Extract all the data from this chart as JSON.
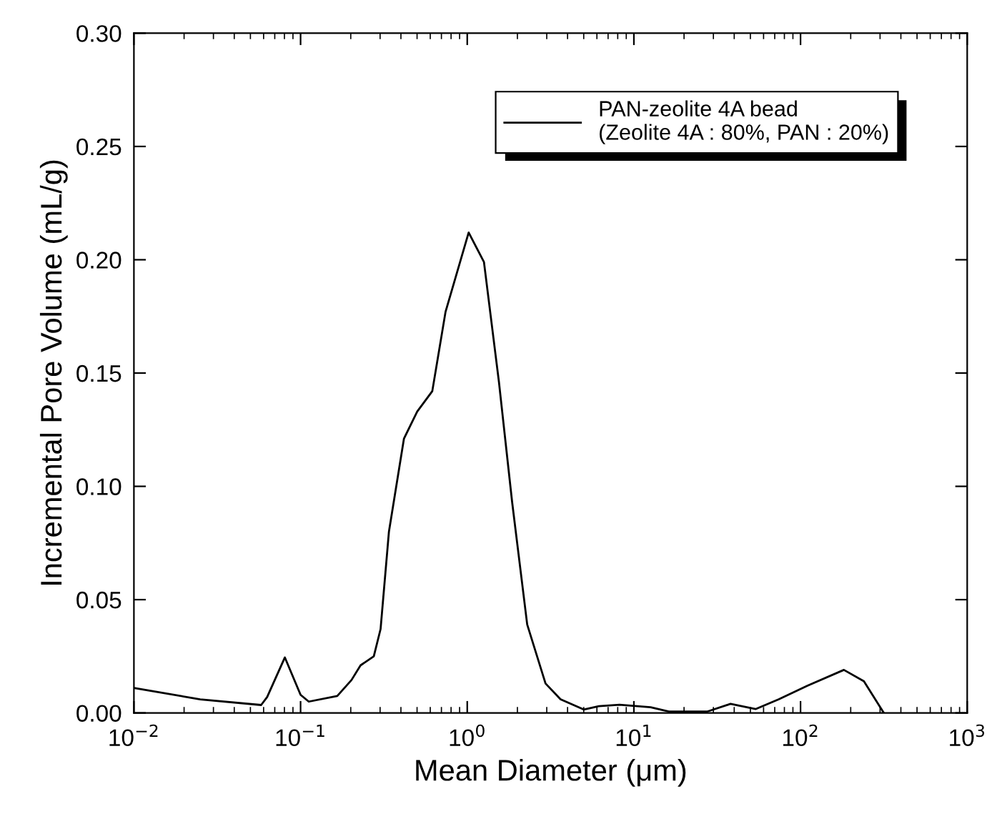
{
  "chart_data": {
    "type": "line",
    "xlabel": "Mean Diameter (μm)",
    "ylabel": "Incremental Pore Volume (mL/g)",
    "log": "x",
    "xlim": [
      0.01,
      1000
    ],
    "ylim": [
      0,
      0.3
    ],
    "xticks": [
      {
        "value": 0.01,
        "label": "10$^{−2}$"
      },
      {
        "value": 0.1,
        "label": "10$^{−1}$"
      },
      {
        "value": 1,
        "label": "10$^{0}$"
      },
      {
        "value": 10,
        "label": "10$^{1}$"
      },
      {
        "value": 100,
        "label": "10$^{2}$"
      },
      {
        "value": 1000,
        "label": "10$^{3}$"
      }
    ],
    "yticks": [
      {
        "value": 0,
        "label": "0.00"
      },
      {
        "value": 0.05,
        "label": "0.05"
      },
      {
        "value": 0.1,
        "label": "0.10"
      },
      {
        "value": 0.15,
        "label": "0.15"
      },
      {
        "value": 0.2,
        "label": "0.20"
      },
      {
        "value": 0.25,
        "label": "0.25"
      },
      {
        "value": 0.3,
        "label": "0.30"
      }
    ],
    "grid": false,
    "legend": "top right",
    "marker": "none",
    "line_style": "solid",
    "series": [
      {
        "name": "PAN-zeolite 4A bead\n(Zeolite 4A : 80%, PAN : 20%)",
        "color": "#000000",
        "x": [
          0.01,
          0.025,
          0.058,
          0.063,
          0.0805,
          0.1,
          0.112,
          0.166,
          0.202,
          0.229,
          0.275,
          0.302,
          0.339,
          0.417,
          0.501,
          0.617,
          0.741,
          1.02,
          1.26,
          1.55,
          1.86,
          2.29,
          2.95,
          3.63,
          5.0,
          6.17,
          8.2,
          12.6,
          16.2,
          27.5,
          38,
          53.7,
          74,
          110,
          182,
          240,
          316
        ],
        "values": [
          0.011,
          0.006,
          0.0035,
          0.007,
          0.0245,
          0.008,
          0.005,
          0.0075,
          0.0145,
          0.021,
          0.025,
          0.037,
          0.08,
          0.121,
          0.133,
          0.142,
          0.177,
          0.212,
          0.199,
          0.146,
          0.093,
          0.039,
          0.013,
          0.006,
          0.0015,
          0.003,
          0.0036,
          0.0025,
          0.0006,
          0.0006,
          0.004,
          0.0017,
          0.006,
          0.012,
          0.019,
          0.014,
          0.0
        ]
      }
    ]
  }
}
